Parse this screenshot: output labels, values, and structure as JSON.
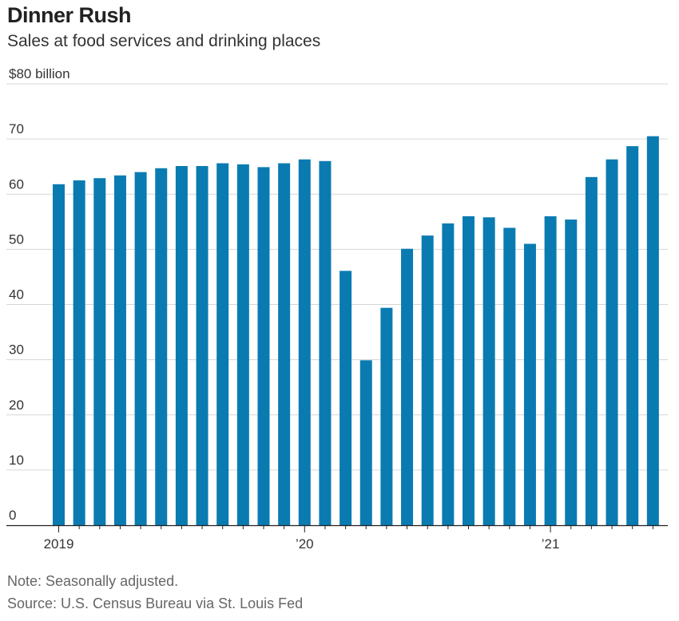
{
  "chart_data": {
    "type": "bar",
    "title": "Dinner Rush",
    "subtitle": "Sales at food services and drinking places",
    "ylabel": "",
    "xlabel": "",
    "ylim": [
      0,
      80
    ],
    "y_ticks": [
      {
        "value": 80,
        "label": "$80 billion"
      },
      {
        "value": 70,
        "label": "70"
      },
      {
        "value": 60,
        "label": "60"
      },
      {
        "value": 50,
        "label": "50"
      },
      {
        "value": 40,
        "label": "40"
      },
      {
        "value": 30,
        "label": "30"
      },
      {
        "value": 20,
        "label": "20"
      },
      {
        "value": 10,
        "label": "10"
      },
      {
        "value": 0,
        "label": "0"
      }
    ],
    "x_tick_labels": [
      {
        "index": 0,
        "label": "2019"
      },
      {
        "index": 12,
        "label": "’20"
      },
      {
        "index": 24,
        "label": "’21"
      }
    ],
    "grid": true,
    "bar_color": "#0a7bb1",
    "categories": [
      "Jan 2019",
      "Feb 2019",
      "Mar 2019",
      "Apr 2019",
      "May 2019",
      "Jun 2019",
      "Jul 2019",
      "Aug 2019",
      "Sep 2019",
      "Oct 2019",
      "Nov 2019",
      "Dec 2019",
      "Jan 2020",
      "Feb 2020",
      "Mar 2020",
      "Apr 2020",
      "May 2020",
      "Jun 2020",
      "Jul 2020",
      "Aug 2020",
      "Sep 2020",
      "Oct 2020",
      "Nov 2020",
      "Dec 2020",
      "Jan 2021",
      "Feb 2021",
      "Mar 2021",
      "Apr 2021",
      "May 2021",
      "Jun 2021"
    ],
    "values": [
      61.8,
      62.5,
      62.9,
      63.4,
      64.0,
      64.7,
      65.1,
      65.1,
      65.6,
      65.4,
      64.9,
      65.6,
      66.3,
      66.0,
      46.1,
      29.9,
      39.4,
      50.1,
      52.5,
      54.7,
      56.0,
      55.8,
      53.9,
      51.0,
      56.0,
      55.4,
      63.1,
      66.3,
      68.7,
      70.5
    ],
    "note": "Note: Seasonally adjusted.",
    "source": "Source: U.S. Census Bureau via St. Louis Fed"
  }
}
